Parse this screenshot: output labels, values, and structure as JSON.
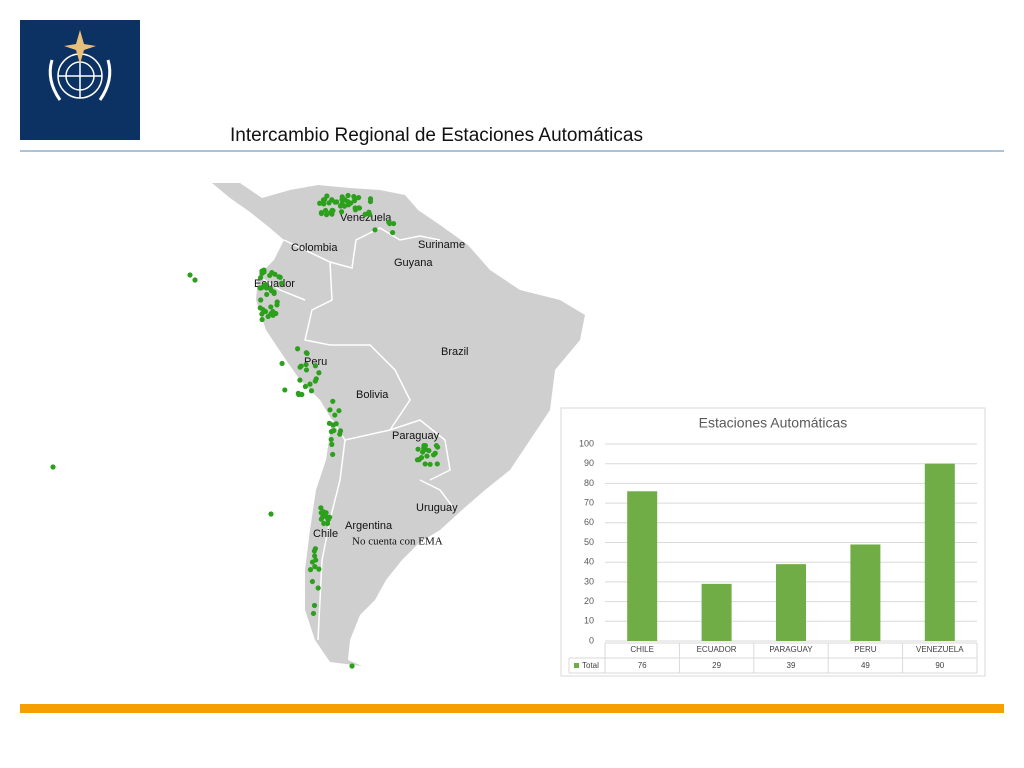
{
  "title": "Intercambio Regional de Estaciones Automáticas",
  "map": {
    "labels": [
      "Venezuela",
      "Colombia",
      "Suriname",
      "Guyana",
      "Ecuador",
      "Brazil",
      "Peru",
      "Bolivia",
      "Paraguay",
      "Uruguay",
      "Argentina",
      "Chile"
    ],
    "note": "No cuenta con EMA"
  },
  "chart_data": {
    "type": "bar",
    "title": "Estaciones Automáticas",
    "categories": [
      "CHILE",
      "ECUADOR",
      "PARAGUAY",
      "PERU",
      "VENEZUELA"
    ],
    "series": [
      {
        "name": "Total",
        "color": "#70ad47",
        "values": [
          76,
          29,
          39,
          49,
          90
        ]
      }
    ],
    "ylim": [
      0,
      100
    ],
    "yticks": [
      0,
      10,
      20,
      30,
      40,
      50,
      60,
      70,
      80,
      90,
      100
    ],
    "grid": true
  }
}
